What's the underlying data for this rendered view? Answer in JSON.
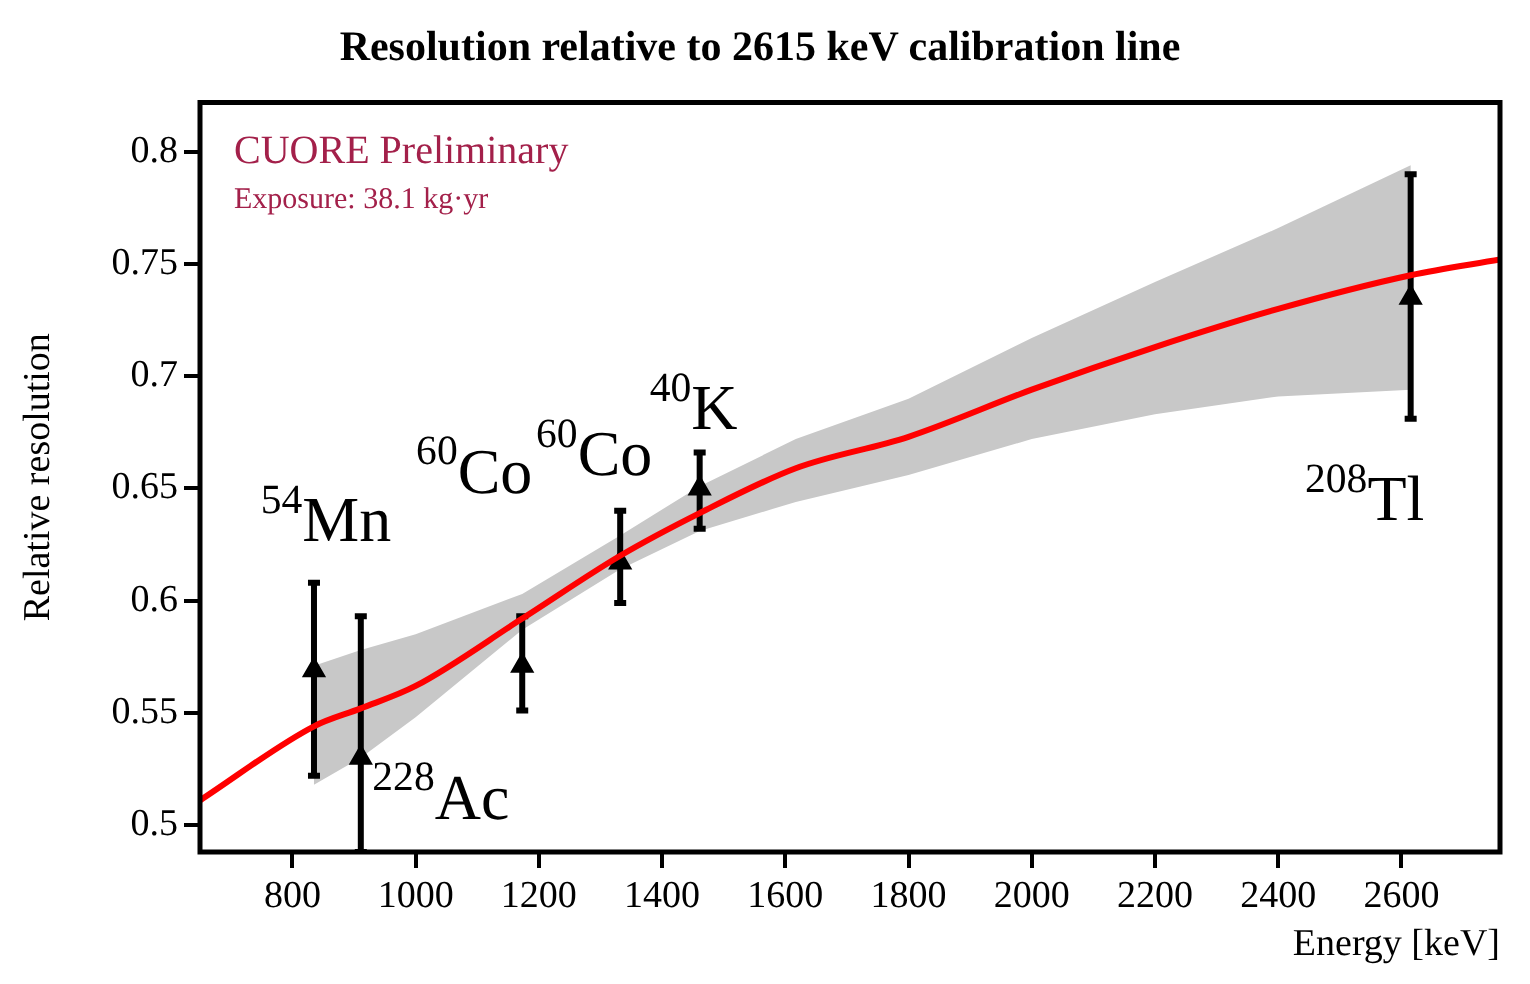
{
  "chart_data": {
    "type": "scatter",
    "title": "Resolution relative to 2615 keV calibration line",
    "xlabel": "Energy [keV]",
    "ylabel": "Relative resolution",
    "xlim": [
      650,
      2760
    ],
    "xticks": [
      800,
      1000,
      1200,
      1400,
      1600,
      1800,
      2000,
      2200,
      2400,
      2600
    ],
    "ylim": [
      0.488,
      0.822
    ],
    "yticks": [
      0.5,
      0.55,
      0.6,
      0.65,
      0.7,
      0.75,
      0.8
    ],
    "grid": false,
    "legend": false,
    "series": [
      {
        "type": "line",
        "color": "#ff0000",
        "line_style": "solid",
        "marker": "none",
        "x": [
          650,
          835,
          911,
          1000,
          1173,
          1332,
          1461,
          1617,
          1800,
          2000,
          2200,
          2400,
          2615,
          2760
        ],
        "values": [
          0.511,
          0.544,
          0.552,
          0.562,
          0.592,
          0.62,
          0.639,
          0.659,
          0.673,
          0.694,
          0.713,
          0.73,
          0.745,
          0.752
        ],
        "lower": [
          null,
          0.518,
          0.53,
          0.548,
          0.587,
          0.614,
          0.631,
          0.644,
          0.656,
          0.672,
          0.683,
          0.691,
          0.694,
          null
        ],
        "upper": [
          null,
          0.571,
          0.578,
          0.585,
          0.603,
          0.629,
          0.651,
          0.672,
          0.69,
          0.717,
          0.742,
          0.766,
          0.794,
          null
        ]
      },
      {
        "color": "#000000",
        "marker": "triangle",
        "x": [
          835,
          911,
          1173,
          1332,
          1461,
          2615
        ],
        "values": [
          0.569,
          0.53,
          0.571,
          0.617,
          0.65,
          0.735
        ],
        "errors": [
          [
            0.522,
            0.608
          ],
          [
            0.488,
            0.593
          ],
          [
            0.551,
            0.593
          ],
          [
            0.599,
            0.64
          ],
          [
            0.632,
            0.666
          ],
          [
            0.681,
            0.79
          ]
        ]
      }
    ],
    "annotations": [
      "CUORE Preliminary",
      "Exposure: 38.1 kg·yr",
      {
        "text": "$^{54}$Mn",
        "x": 835,
        "y": 0.569
      },
      {
        "text": "$^{228}$Ac",
        "x": 911,
        "y": 0.53
      },
      {
        "text": "$^{60}$Co",
        "x": 1173,
        "y": 0.571
      },
      {
        "text": "$^{60}$Co",
        "x": 1332,
        "y": 0.617
      },
      {
        "text": "$^{40}$K",
        "x": 1461,
        "y": 0.65
      },
      {
        "text": "$^{208}$Tl",
        "x": 2615,
        "y": 0.735
      }
    ]
  }
}
